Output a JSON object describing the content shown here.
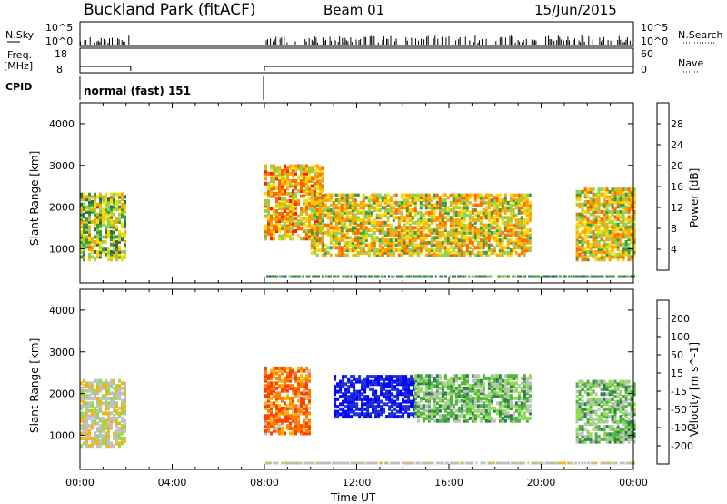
{
  "header": {
    "radar": "Buckland Park (fitACF)",
    "beam": "Beam 01",
    "date": "15/Jun/2015"
  },
  "aux": {
    "nsky_label": "N.Sky",
    "nsky_ticks": [
      "10^5",
      "10^0"
    ],
    "nsearch_label": "N.Search",
    "freq_label_1": "Freq.",
    "freq_label_2": "[MHz]",
    "freq_ticks": [
      "18",
      "8"
    ],
    "nave_ticks": [
      "60",
      "0"
    ],
    "nave_label": "Nave",
    "cpid_label": "CPID",
    "cpid_value": "normal (fast) 151"
  },
  "chart_data": [
    {
      "type": "heatmap",
      "title": "",
      "quantity": "Power",
      "ylabel": "Slant Range [km]",
      "xlabel": "",
      "xlim": [
        "00:00",
        "24:00"
      ],
      "ylim": [
        180,
        4500
      ],
      "yticks": [
        1000,
        2000,
        3000,
        4000
      ],
      "colorbar": {
        "label": "Power [dB]",
        "ticks": [
          4,
          8,
          12,
          16,
          20,
          24,
          28
        ],
        "colors": [
          "#0000ff",
          "#1f3aa8",
          "#2f6f4f",
          "#3f9a3f",
          "#8fd24f",
          "#ffd700",
          "#ffa500",
          "#ff6a00",
          "#ff2000",
          "#ff0000"
        ]
      },
      "regions": [
        {
          "t_start": "00:00",
          "t_end": "02:00",
          "r_min": 700,
          "r_max": 2300,
          "level": 16
        },
        {
          "t_start": "08:00",
          "t_end": "10:30",
          "r_min": 1200,
          "r_max": 3000,
          "level": 22
        },
        {
          "t_start": "10:00",
          "t_end": "19:30",
          "r_min": 800,
          "r_max": 2300,
          "level": 20
        },
        {
          "t_start": "21:30",
          "t_end": "24:00",
          "r_min": 700,
          "r_max": 2400,
          "level": 20
        }
      ]
    },
    {
      "type": "heatmap",
      "title": "",
      "quantity": "Velocity",
      "ylabel": "Slant Range [km]",
      "xlabel": "Time UT",
      "xticks": [
        "00:00",
        "04:00",
        "08:00",
        "12:00",
        "16:00",
        "20:00",
        "00:00"
      ],
      "xlim": [
        "00:00",
        "24:00"
      ],
      "ylim": [
        180,
        4500
      ],
      "yticks": [
        1000,
        2000,
        3000,
        4000
      ],
      "colorbar": {
        "label": "Velocity [m s^-1]",
        "ticks": [
          200,
          100,
          50,
          15,
          -15,
          -50,
          -100,
          -200
        ],
        "colors": [
          "#0000ff",
          "#1c2fd0",
          "#2f7f4f",
          "#4fb33f",
          "#8fdc4f",
          "#c0c0c0",
          "#ffb000",
          "#ff8000",
          "#ff4000",
          "#ff0000"
        ]
      },
      "regions": [
        {
          "t_start": "00:00",
          "t_end": "02:00",
          "r_min": 700,
          "r_max": 2300,
          "level": 0
        },
        {
          "t_start": "08:00",
          "t_end": "10:00",
          "r_min": 1000,
          "r_max": 2600,
          "level": -40
        },
        {
          "t_start": "11:00",
          "t_end": "14:30",
          "r_min": 1400,
          "r_max": 2400,
          "level": 200
        },
        {
          "t_start": "14:30",
          "t_end": "19:30",
          "r_min": 1300,
          "r_max": 2400,
          "level": 30
        },
        {
          "t_start": "21:30",
          "t_end": "24:00",
          "r_min": 800,
          "r_max": 2300,
          "level": 30
        }
      ]
    }
  ]
}
